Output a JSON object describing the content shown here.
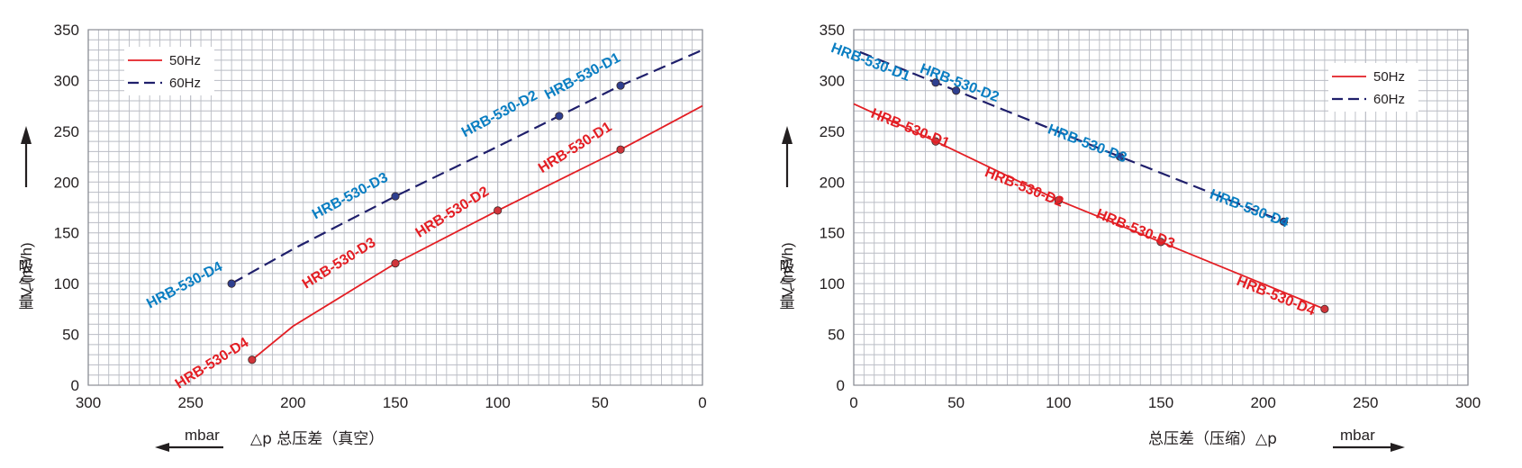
{
  "colors": {
    "hz50": "#e31e24",
    "hz60": "#1f1f6b",
    "label50": "#e31e24",
    "label60": "#0a7ec2",
    "grid": "#b9bcc4"
  },
  "chart_data": [
    {
      "type": "line",
      "name": "vacuum",
      "xlim": [
        300,
        0
      ],
      "ylim": [
        0,
        350
      ],
      "x_reversed": true,
      "xticks": [
        300,
        250,
        200,
        150,
        100,
        50,
        0
      ],
      "yticks": [
        0,
        50,
        100,
        150,
        200,
        250,
        300,
        350
      ],
      "xlabel": "△p  总压差（真空）",
      "xunit": "mbar",
      "ylabel_cn": "吸气量",
      "ylabel": "V (m³/h)",
      "grid": true,
      "legend_position": "top-left",
      "series": [
        {
          "name": "50Hz",
          "style": "solid",
          "points": [
            [
              220,
              25
            ],
            [
              200,
              58
            ],
            [
              150,
              120
            ],
            [
              100,
              172
            ],
            [
              50,
              222
            ],
            [
              40,
              232
            ],
            [
              0,
              275
            ]
          ]
        },
        {
          "name": "60Hz",
          "style": "dashed",
          "points": [
            [
              230,
              100
            ],
            [
              200,
              134
            ],
            [
              150,
              186
            ],
            [
              100,
              235
            ],
            [
              70,
              265
            ],
            [
              40,
              295
            ],
            [
              0,
              330
            ]
          ]
        }
      ],
      "annotations": [
        {
          "text": "HRB-530-D4",
          "series": "50Hz",
          "x": 220,
          "y": 25
        },
        {
          "text": "HRB-530-D3",
          "series": "50Hz",
          "x": 150,
          "y": 120
        },
        {
          "text": "HRB-530-D2",
          "series": "50Hz",
          "x": 100,
          "y": 172
        },
        {
          "text": "HRB-530-D1",
          "series": "50Hz",
          "x": 40,
          "y": 232
        },
        {
          "text": "HRB-530-D4",
          "series": "60Hz",
          "x": 230,
          "y": 100
        },
        {
          "text": "HRB-530-D3",
          "series": "60Hz",
          "x": 150,
          "y": 186
        },
        {
          "text": "HRB-530-D2",
          "series": "60Hz",
          "x": 70,
          "y": 265
        },
        {
          "text": "HRB-530-D1",
          "series": "60Hz",
          "x": 40,
          "y": 295
        }
      ]
    },
    {
      "type": "line",
      "name": "pressure",
      "xlim": [
        0,
        300
      ],
      "ylim": [
        0,
        350
      ],
      "x_reversed": false,
      "xticks": [
        0,
        50,
        100,
        150,
        200,
        250,
        300
      ],
      "yticks": [
        0,
        50,
        100,
        150,
        200,
        250,
        300,
        350
      ],
      "xlabel": "总压差（压缩）△p",
      "xunit": "mbar",
      "ylabel_cn": "吸气量",
      "ylabel": "V (m³/h)",
      "grid": true,
      "legend_position": "top-right",
      "series": [
        {
          "name": "50Hz",
          "style": "solid",
          "points": [
            [
              0,
              277
            ],
            [
              40,
              240
            ],
            [
              100,
              182
            ],
            [
              150,
              141
            ],
            [
              230,
              75
            ]
          ]
        },
        {
          "name": "60Hz",
          "style": "dashed",
          "points": [
            [
              3,
              328
            ],
            [
              40,
              298
            ],
            [
              50,
              290
            ],
            [
              130,
              225
            ],
            [
              210,
              161
            ]
          ]
        }
      ],
      "annotations": [
        {
          "text": "HRB-530-D1",
          "series": "50Hz",
          "x": 40,
          "y": 240
        },
        {
          "text": "HRB-530-D2",
          "series": "50Hz",
          "x": 100,
          "y": 182
        },
        {
          "text": "HRB-530-D3",
          "series": "50Hz",
          "x": 150,
          "y": 141
        },
        {
          "text": "HRB-530-D4",
          "series": "50Hz",
          "x": 230,
          "y": 75
        },
        {
          "text": "HRB-530-D1",
          "series": "60Hz",
          "x": 40,
          "y": 298
        },
        {
          "text": "HRB-530-D2",
          "series": "60Hz",
          "x": 50,
          "y": 290
        },
        {
          "text": "HRB-530-D3",
          "series": "60Hz",
          "x": 130,
          "y": 225
        },
        {
          "text": "HRB-530-D4",
          "series": "60Hz",
          "x": 210,
          "y": 161
        }
      ]
    }
  ]
}
